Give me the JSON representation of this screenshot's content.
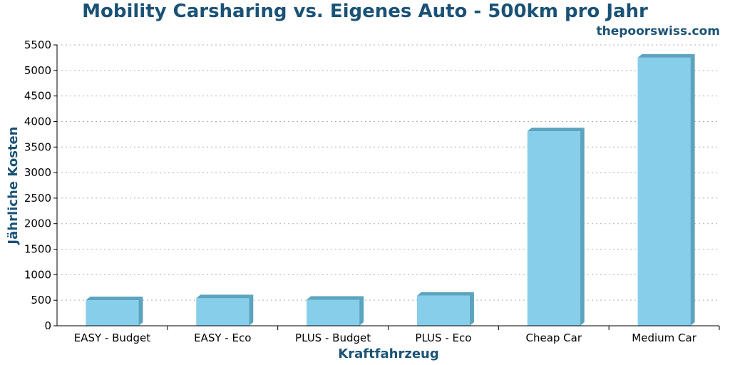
{
  "chart_data": {
    "type": "bar",
    "title": "Mobility Carsharing vs. Eigenes Auto - 500km pro Jahr",
    "source": "thepoorswiss.com",
    "xlabel": "Kraftfahrzeug",
    "ylabel": "Jährliche Kosten",
    "categories": [
      "EASY - Budget",
      "EASY - Eco",
      "PLUS - Budget",
      "PLUS - Eco",
      "Cheap Car",
      "Medium Car"
    ],
    "values": [
      500,
      540,
      510,
      590,
      3810,
      5250
    ],
    "ylim": [
      0,
      5500
    ],
    "yticks": [
      0,
      500,
      1000,
      1500,
      2000,
      2500,
      3000,
      3500,
      4000,
      4500,
      5000,
      5500
    ],
    "grid": true,
    "colors": {
      "bar": "#87ceeb",
      "bar_side": "#5ba3bf",
      "title": "#1a5276"
    }
  }
}
